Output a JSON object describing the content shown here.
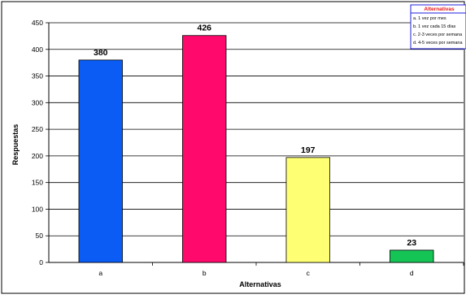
{
  "chart_data": {
    "type": "bar",
    "title": "",
    "xlabel": "Alternativas",
    "ylabel": "Respuestas",
    "categories": [
      "a",
      "b",
      "c",
      "d"
    ],
    "values": [
      380,
      426,
      197,
      23
    ],
    "data_labels": [
      "380",
      "426",
      "197",
      "23"
    ],
    "bar_colors": [
      "#0a5cf5",
      "#ff0a6c",
      "#ffff73",
      "#14c455"
    ],
    "ylim": [
      0,
      450
    ],
    "yticks": [
      0,
      50,
      100,
      150,
      200,
      250,
      300,
      350,
      400,
      450
    ],
    "grid": true,
    "legend": {
      "title": "Alternativas",
      "placement": "top-right",
      "entries": [
        "a. 1 vez por mes",
        "b. 1 vez cada 15 días",
        "c. 2-3 veces por semana",
        "d. 4-5 veces por semana"
      ]
    }
  }
}
